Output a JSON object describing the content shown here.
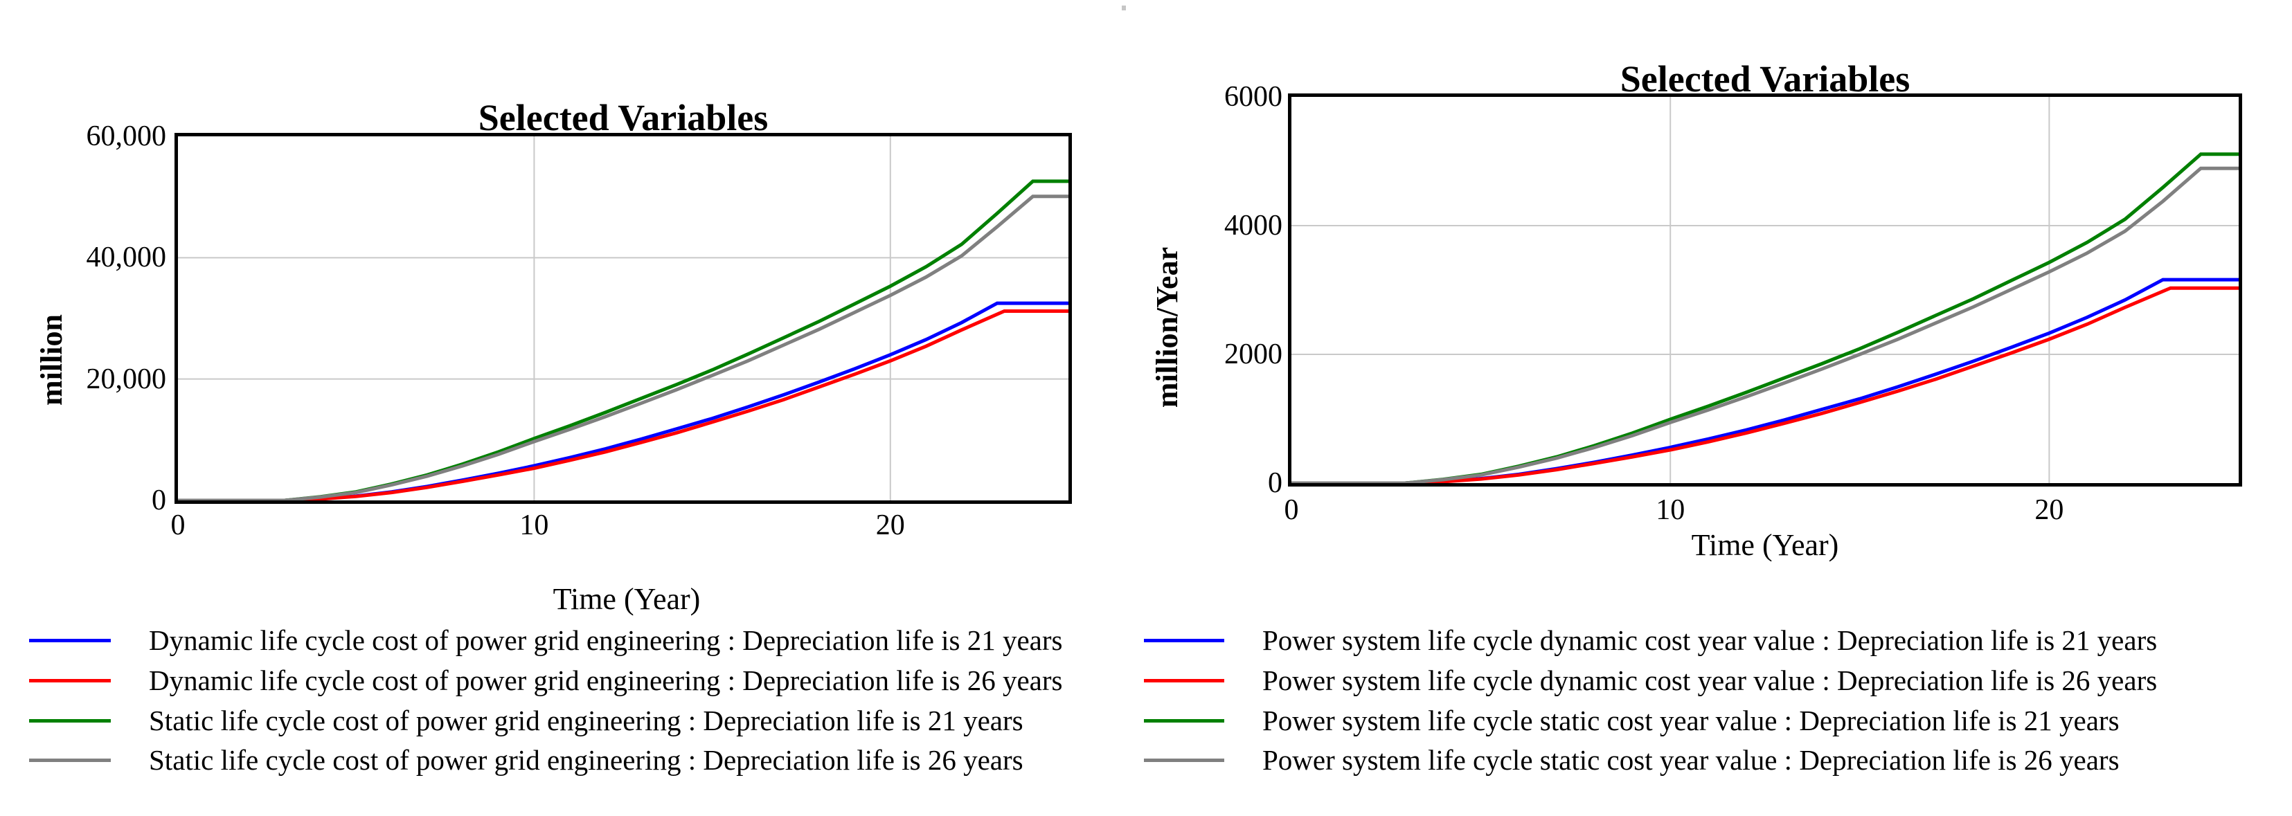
{
  "page": {
    "background": "#ffffff",
    "grid_color": "#c9c9c9",
    "frame_color": "#000000"
  },
  "chart_data": [
    {
      "type": "line",
      "title": "Selected Variables",
      "x_label": "Time (Year)",
      "y_label": "million",
      "xlim": [
        0,
        25
      ],
      "ylim": [
        0,
        60000
      ],
      "grid": true,
      "legend_position": "bottom",
      "x_ticks": [
        {
          "v": 0,
          "label": "0"
        },
        {
          "v": 10,
          "label": "10"
        },
        {
          "v": 20,
          "label": "20"
        }
      ],
      "y_ticks": [
        {
          "v": 0,
          "label": "0"
        },
        {
          "v": 20000,
          "label": "20,000"
        },
        {
          "v": 40000,
          "label": "40,000"
        },
        {
          "v": 60000,
          "label": "60,000"
        }
      ],
      "series": [
        {
          "name": "Dynamic life cycle cost of power grid engineering : Depreciation life is 21 years",
          "color": "#0000ff",
          "points": [
            [
              0,
              0
            ],
            [
              3,
              0
            ],
            [
              4,
              250
            ],
            [
              5,
              700
            ],
            [
              6,
              1400
            ],
            [
              7,
              2300
            ],
            [
              8,
              3350
            ],
            [
              9,
              4480
            ],
            [
              10,
              5700
            ],
            [
              11,
              7050
            ],
            [
              12,
              8500
            ],
            [
              13,
              10100
            ],
            [
              14,
              11800
            ],
            [
              15,
              13500
            ],
            [
              16,
              15400
            ],
            [
              17,
              17400
            ],
            [
              18,
              19500
            ],
            [
              19,
              21700
            ],
            [
              20,
              24000
            ],
            [
              21,
              26500
            ],
            [
              22,
              29300
            ],
            [
              23,
              32500
            ],
            [
              25,
              32500
            ]
          ]
        },
        {
          "name": "Dynamic life cycle cost of power grid engineering : Depreciation life is 26 years",
          "color": "#ff0000",
          "points": [
            [
              0,
              0
            ],
            [
              3,
              0
            ],
            [
              4,
              230
            ],
            [
              5,
              650
            ],
            [
              6,
              1300
            ],
            [
              7,
              2150
            ],
            [
              8,
              3150
            ],
            [
              9,
              4200
            ],
            [
              10,
              5300
            ],
            [
              11,
              6600
            ],
            [
              12,
              8000
            ],
            [
              13,
              9550
            ],
            [
              14,
              11150
            ],
            [
              15,
              12900
            ],
            [
              16,
              14700
            ],
            [
              17,
              16600
            ],
            [
              18,
              18700
            ],
            [
              19,
              20800
            ],
            [
              20,
              23000
            ],
            [
              21,
              25400
            ],
            [
              22,
              28100
            ],
            [
              23.2,
              31200
            ],
            [
              25,
              31200
            ]
          ]
        },
        {
          "name": "Static life cycle cost of power grid engineering : Depreciation life is 21 years",
          "color": "#008000",
          "points": [
            [
              0,
              0
            ],
            [
              3,
              0
            ],
            [
              4,
              600
            ],
            [
              5,
              1400
            ],
            [
              6,
              2700
            ],
            [
              7,
              4200
            ],
            [
              8,
              6000
            ],
            [
              9,
              8000
            ],
            [
              10,
              10200
            ],
            [
              11,
              12300
            ],
            [
              12,
              14500
            ],
            [
              13,
              16800
            ],
            [
              14,
              19100
            ],
            [
              15,
              21500
            ],
            [
              16,
              24100
            ],
            [
              17,
              26800
            ],
            [
              18,
              29500
            ],
            [
              19,
              32400
            ],
            [
              20,
              35300
            ],
            [
              21,
              38500
            ],
            [
              22,
              42200
            ],
            [
              23,
              47300
            ],
            [
              24,
              52600
            ],
            [
              25,
              52600
            ]
          ]
        },
        {
          "name": "Static life cycle cost of power grid engineering : Depreciation life is 26 years",
          "color": "#808080",
          "points": [
            [
              0,
              0
            ],
            [
              3,
              0
            ],
            [
              4,
              560
            ],
            [
              5,
              1300
            ],
            [
              6,
              2550
            ],
            [
              7,
              4000
            ],
            [
              8,
              5700
            ],
            [
              9,
              7600
            ],
            [
              10,
              9700
            ],
            [
              11,
              11700
            ],
            [
              12,
              13800
            ],
            [
              13,
              16000
            ],
            [
              14,
              18250
            ],
            [
              15,
              20600
            ],
            [
              16,
              23000
            ],
            [
              17,
              25600
            ],
            [
              18,
              28200
            ],
            [
              19,
              31000
            ],
            [
              20,
              33800
            ],
            [
              21,
              36800
            ],
            [
              22,
              40300
            ],
            [
              23,
              45100
            ],
            [
              24,
              50100
            ],
            [
              25,
              50100
            ]
          ]
        }
      ]
    },
    {
      "type": "line",
      "title": "Selected Variables",
      "x_label": "Time (Year)",
      "y_label": "million/Year",
      "xlim": [
        0,
        25
      ],
      "ylim": [
        0,
        6000
      ],
      "grid": true,
      "legend_position": "bottom",
      "x_ticks": [
        {
          "v": 0,
          "label": "0"
        },
        {
          "v": 10,
          "label": "10"
        },
        {
          "v": 20,
          "label": "20"
        }
      ],
      "y_ticks": [
        {
          "v": 0,
          "label": "0"
        },
        {
          "v": 2000,
          "label": "2000"
        },
        {
          "v": 4000,
          "label": "4000"
        },
        {
          "v": 6000,
          "label": "6000"
        }
      ],
      "series": [
        {
          "name": "Power system life cycle dynamic cost year value : Depreciation life is 21 years",
          "color": "#0000ff",
          "points": [
            [
              0,
              0
            ],
            [
              3,
              0
            ],
            [
              4,
              25
            ],
            [
              5,
              70
            ],
            [
              6,
              135
            ],
            [
              7,
              225
            ],
            [
              8,
              325
            ],
            [
              9,
              435
            ],
            [
              10,
              555
            ],
            [
              11,
              685
            ],
            [
              12,
              825
            ],
            [
              13,
              980
            ],
            [
              14,
              1145
            ],
            [
              15,
              1310
            ],
            [
              16,
              1495
            ],
            [
              17,
              1690
            ],
            [
              18,
              1895
            ],
            [
              19,
              2110
            ],
            [
              20,
              2330
            ],
            [
              21,
              2575
            ],
            [
              22,
              2845
            ],
            [
              23,
              3160
            ],
            [
              25,
              3160
            ]
          ]
        },
        {
          "name": "Power system life cycle dynamic cost year value : Depreciation life is 26 years",
          "color": "#ff0000",
          "points": [
            [
              0,
              0
            ],
            [
              3,
              0
            ],
            [
              4,
              22
            ],
            [
              5,
              63
            ],
            [
              6,
              126
            ],
            [
              7,
              209
            ],
            [
              8,
              306
            ],
            [
              9,
              408
            ],
            [
              10,
              515
            ],
            [
              11,
              641
            ],
            [
              12,
              777
            ],
            [
              13,
              928
            ],
            [
              14,
              1083
            ],
            [
              15,
              1253
            ],
            [
              16,
              1428
            ],
            [
              17,
              1613
            ],
            [
              18,
              1817
            ],
            [
              19,
              2021
            ],
            [
              20,
              2235
            ],
            [
              21,
              2468
            ],
            [
              22,
              2730
            ],
            [
              23.2,
              3030
            ],
            [
              25,
              3030
            ]
          ]
        },
        {
          "name": "Power system life cycle static cost year value : Depreciation life is 21 years",
          "color": "#008000",
          "points": [
            [
              0,
              0
            ],
            [
              3,
              0
            ],
            [
              4,
              58
            ],
            [
              5,
              136
            ],
            [
              6,
              262
            ],
            [
              7,
              408
            ],
            [
              8,
              583
            ],
            [
              9,
              777
            ],
            [
              10,
              991
            ],
            [
              11,
              1195
            ],
            [
              12,
              1409
            ],
            [
              13,
              1632
            ],
            [
              14,
              1855
            ],
            [
              15,
              2088
            ],
            [
              16,
              2341
            ],
            [
              17,
              2603
            ],
            [
              18,
              2865
            ],
            [
              19,
              3147
            ],
            [
              20,
              3429
            ],
            [
              21,
              3740
            ],
            [
              22,
              4099
            ],
            [
              23,
              4594
            ],
            [
              24,
              5110
            ],
            [
              25,
              5110
            ]
          ]
        },
        {
          "name": "Power system life cycle static cost year value : Depreciation life is 26 years",
          "color": "#808080",
          "points": [
            [
              0,
              0
            ],
            [
              3,
              0
            ],
            [
              4,
              54
            ],
            [
              5,
              126
            ],
            [
              6,
              248
            ],
            [
              7,
              388
            ],
            [
              8,
              554
            ],
            [
              9,
              738
            ],
            [
              10,
              942
            ],
            [
              11,
              1136
            ],
            [
              12,
              1340
            ],
            [
              13,
              1554
            ],
            [
              14,
              1772
            ],
            [
              15,
              2000
            ],
            [
              16,
              2233
            ],
            [
              17,
              2486
            ],
            [
              18,
              2738
            ],
            [
              19,
              3010
            ],
            [
              20,
              3282
            ],
            [
              21,
              3573
            ],
            [
              22,
              3913
            ],
            [
              23,
              4379
            ],
            [
              24,
              4890
            ],
            [
              25,
              4890
            ]
          ]
        }
      ]
    }
  ]
}
